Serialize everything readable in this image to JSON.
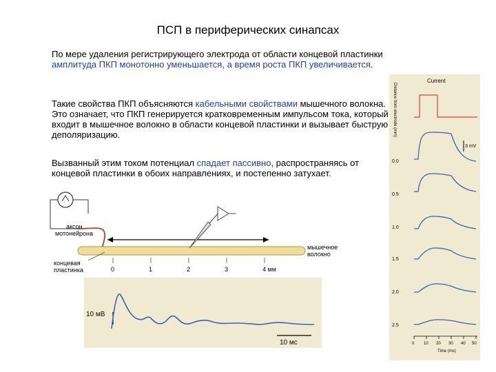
{
  "title": "ПСП в периферических синапсах",
  "p1": {
    "a": "По мере удаления регистрирующего электрода от области концевой пластинки ",
    "b": "амплитуда ПКП",
    "c": " монотонно уменьшается, а ",
    "d": "время роста ПКП",
    "e": " увеличивается",
    "f": "."
  },
  "p2": {
    "a": "Такие свойства ПКП объясняются ",
    "b": "кабельными свойствами",
    "c": " мышечного волокна. Это означает, что ПКП генерируется кратковременным импульсом тока, который входит в мышечное волокно в области концевой пластинки и вызывает быструю деполяризацию."
  },
  "p3": {
    "a": "Вызванный этим током потенциал ",
    "b": "спадает пассивно",
    "c": ", распространяясь от концевой пластинки в обоих направлениях, и постепенно затухает."
  },
  "diagram": {
    "axon_label_1": "аксон",
    "axon_label_2": "мотонейрона",
    "fiber_label_1": "мышечное",
    "fiber_label_2": "волокно",
    "plate_label_1": "концевая",
    "plate_label_2": "пластинка",
    "ticks": [
      "0",
      "1",
      "2",
      "3",
      "4 мм"
    ]
  },
  "trace": {
    "scale_v": "10 мВ",
    "scale_t": "10 мс"
  },
  "right_panel": {
    "current_label": "Current",
    "y_axis_label": "Distance from electrode (mm)",
    "scale_label": "3 mV",
    "distances": [
      "0.0",
      "0.5",
      "1.0",
      "1.5",
      "2.0",
      "2.5"
    ],
    "time_ticks": [
      "0",
      "10",
      "20",
      "30",
      "40",
      "50"
    ],
    "time_label": "Time (ms)"
  },
  "colors": {
    "text_highlight": "#1f3fa6",
    "trace_blue": "#3a63b0",
    "current_red": "#d0433a",
    "axon_red": "#c0392b",
    "panel_bg": "#f1ead3"
  }
}
